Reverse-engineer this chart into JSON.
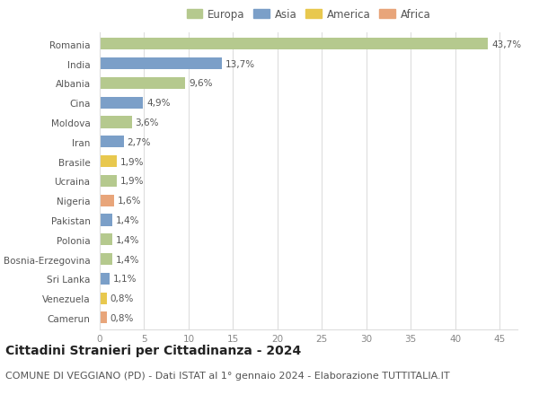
{
  "countries": [
    "Romania",
    "India",
    "Albania",
    "Cina",
    "Moldova",
    "Iran",
    "Brasile",
    "Ucraina",
    "Nigeria",
    "Pakistan",
    "Polonia",
    "Bosnia-Erzegovina",
    "Sri Lanka",
    "Venezuela",
    "Camerun"
  ],
  "values": [
    43.7,
    13.7,
    9.6,
    4.9,
    3.6,
    2.7,
    1.9,
    1.9,
    1.6,
    1.4,
    1.4,
    1.4,
    1.1,
    0.8,
    0.8
  ],
  "labels": [
    "43,7%",
    "13,7%",
    "9,6%",
    "4,9%",
    "3,6%",
    "2,7%",
    "1,9%",
    "1,9%",
    "1,6%",
    "1,4%",
    "1,4%",
    "1,4%",
    "1,1%",
    "0,8%",
    "0,8%"
  ],
  "continents": [
    "Europa",
    "Asia",
    "Europa",
    "Asia",
    "Europa",
    "Asia",
    "America",
    "Europa",
    "Africa",
    "Asia",
    "Europa",
    "Europa",
    "Asia",
    "America",
    "Africa"
  ],
  "continent_colors": {
    "Europa": "#b5c98e",
    "Asia": "#7b9fc8",
    "America": "#e8c84e",
    "Africa": "#e8a57a"
  },
  "legend_order": [
    "Europa",
    "Asia",
    "America",
    "Africa"
  ],
  "title": "Cittadini Stranieri per Cittadinanza - 2024",
  "subtitle": "COMUNE DI VEGGIANO (PD) - Dati ISTAT al 1° gennaio 2024 - Elaborazione TUTTITALIA.IT",
  "xlim": [
    0,
    47
  ],
  "xticks": [
    0,
    5,
    10,
    15,
    20,
    25,
    30,
    35,
    40,
    45
  ],
  "bg_color": "#ffffff",
  "grid_color": "#dddddd",
  "bar_height": 0.6,
  "title_fontsize": 10,
  "subtitle_fontsize": 8,
  "label_fontsize": 7.5,
  "tick_fontsize": 7.5,
  "legend_fontsize": 8.5
}
